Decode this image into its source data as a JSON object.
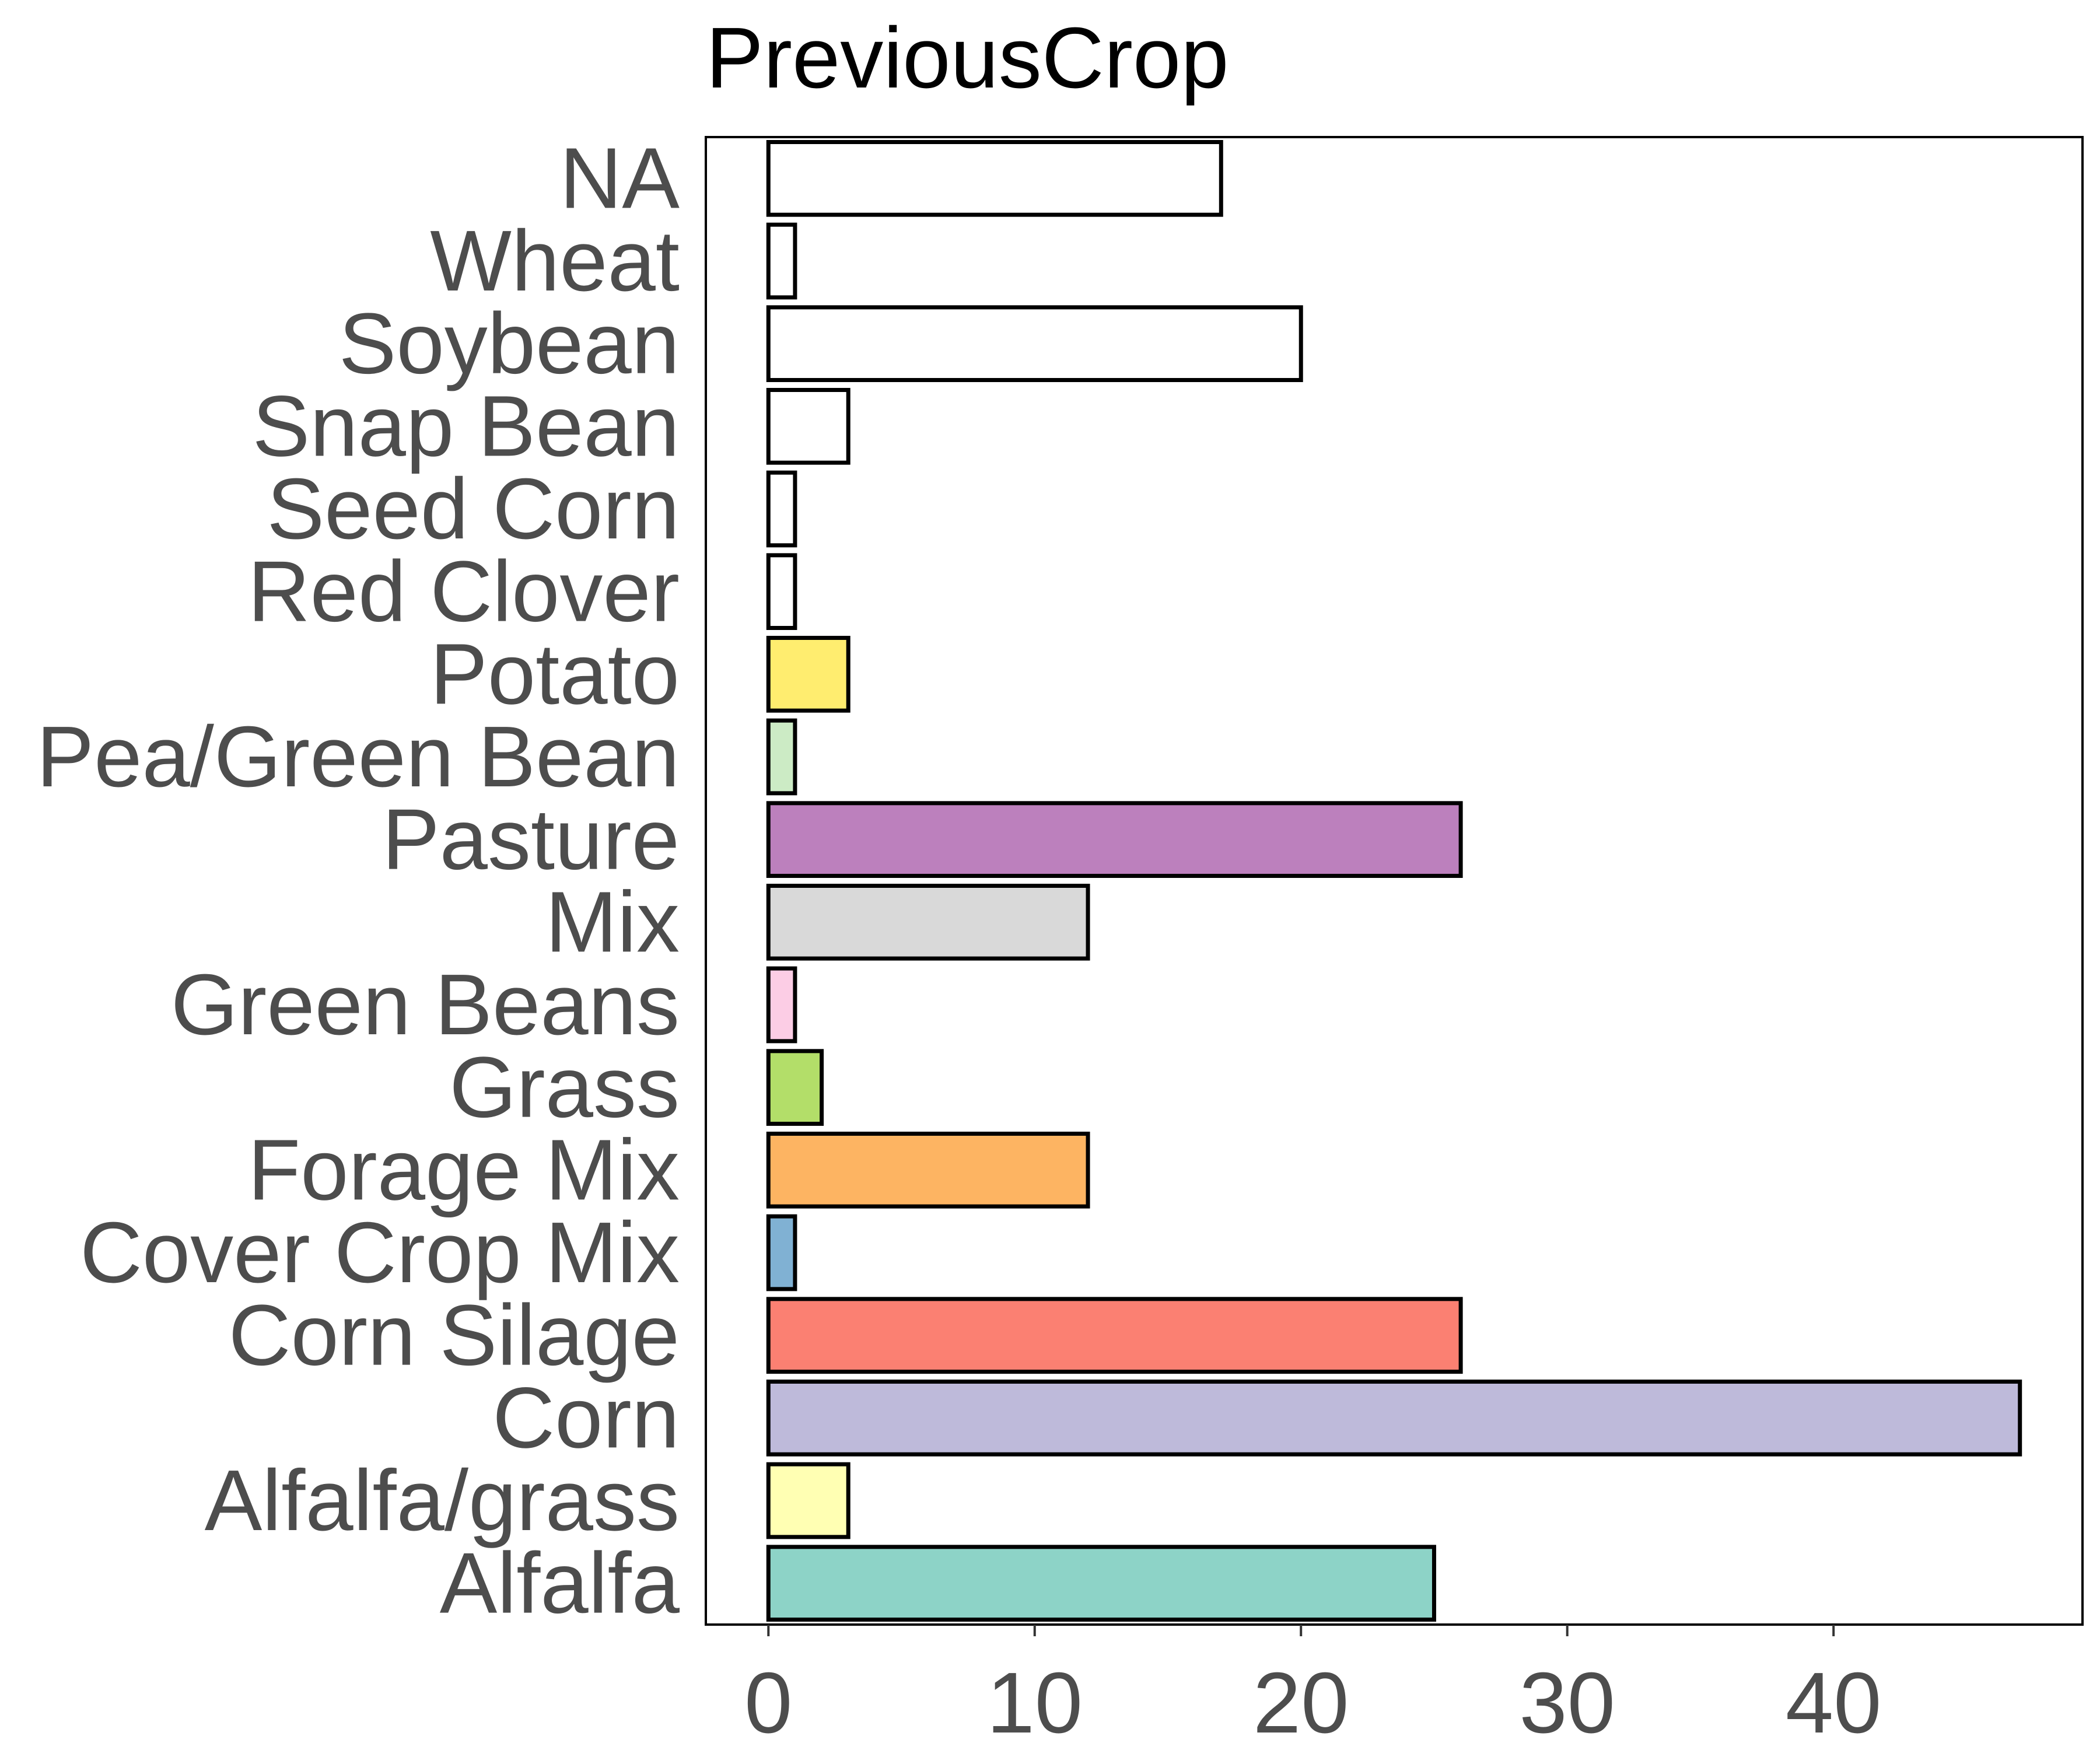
{
  "chart_data": {
    "type": "bar",
    "orientation": "horizontal",
    "title": "PreviousCrop",
    "xlabel": "",
    "ylabel": "",
    "xlim": [
      -2.35,
      49.35
    ],
    "x_ticks": [
      0,
      10,
      20,
      30,
      40
    ],
    "grid": false,
    "legend": "none",
    "categories": [
      "NA",
      "Wheat",
      "Soybean",
      "Snap Bean",
      "Seed Corn",
      "Red Clover",
      "Potato",
      "Pea/Green Bean",
      "Pasture",
      "Mix",
      "Green Beans",
      "Grass",
      "Forage Mix",
      "Cover Crop Mix",
      "Corn Silage",
      "Corn",
      "Alfalfa/grass",
      "Alfalfa"
    ],
    "values": [
      17,
      1,
      20,
      3,
      1,
      1,
      3,
      1,
      26,
      12,
      1,
      2,
      12,
      1,
      26,
      47,
      3,
      25
    ],
    "colors": [
      "#FFFFFF",
      "#FFFFFF",
      "#FFFFFF",
      "#FFFFFF",
      "#FFFFFF",
      "#FFFFFF",
      "#FFED6F",
      "#CCEBC5",
      "#BC80BD",
      "#D9D9D9",
      "#FCCDE5",
      "#B3DE69",
      "#FDB462",
      "#80B1D3",
      "#FB8072",
      "#BEBADA",
      "#FFFFB3",
      "#8DD3C7"
    ]
  }
}
